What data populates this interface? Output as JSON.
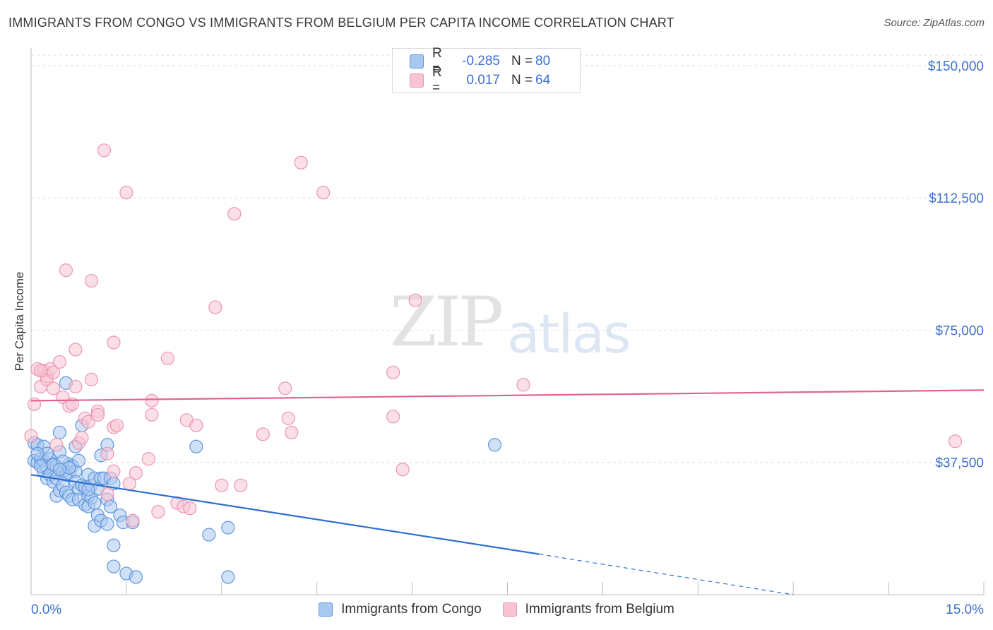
{
  "header": {
    "title": "IMMIGRANTS FROM CONGO VS IMMIGRANTS FROM BELGIUM PER CAPITA INCOME CORRELATION CHART",
    "source": "Source: ZipAtlas.com"
  },
  "watermark": {
    "zip": "ZIP",
    "atlas": "atlas"
  },
  "stats": {
    "congo": {
      "r_label": "R =",
      "r_value": "-0.285",
      "n_label": "N =",
      "n_value": "80"
    },
    "belgium": {
      "r_label": "R =",
      "r_value": "0.017",
      "n_label": "N =",
      "n_value": "64"
    }
  },
  "colors": {
    "congo_fill": "#a9c8f0",
    "congo_stroke": "#5f95dc",
    "congo_line": "#2c6fd1",
    "belgium_fill": "#f8c4d4",
    "belgium_stroke": "#eb95b0",
    "belgium_line": "#e2648e",
    "axis_text": "#3d6fd1",
    "grid": "#dcdcdc"
  },
  "chart_data": {
    "type": "scatter",
    "title": "IMMIGRANTS FROM CONGO VS IMMIGRANTS FROM BELGIUM PER CAPITA INCOME CORRELATION CHART",
    "xlabel": "",
    "ylabel": "Per Capita Income",
    "xlim": [
      0,
      15
    ],
    "ylim": [
      0,
      153000
    ],
    "x_tick_labels": [
      "0.0%",
      "15.0%"
    ],
    "y_ticks": [
      37500,
      75000,
      112500,
      150000
    ],
    "y_tick_labels": [
      "$37,500",
      "$75,000",
      "$112,500",
      "$150,000"
    ],
    "legend": [
      "Immigrants from Congo",
      "Immigrants from Belgium"
    ],
    "series": [
      {
        "name": "Immigrants from Congo",
        "trend": {
          "x0": 0,
          "y0": 34000,
          "x1": 8.0,
          "y1": 11500,
          "dash_to_x": 12.0,
          "dash_to_y": 0
        },
        "points": [
          [
            0.05,
            43000
          ],
          [
            0.05,
            38000
          ],
          [
            0.1,
            37500
          ],
          [
            0.1,
            42500
          ],
          [
            0.15,
            38500
          ],
          [
            0.2,
            42000
          ],
          [
            0.2,
            38000
          ],
          [
            0.2,
            35000
          ],
          [
            0.25,
            33000
          ],
          [
            0.25,
            36000
          ],
          [
            0.3,
            38500
          ],
          [
            0.3,
            34000
          ],
          [
            0.35,
            32000
          ],
          [
            0.35,
            37000
          ],
          [
            0.4,
            36500
          ],
          [
            0.4,
            33000
          ],
          [
            0.4,
            28000
          ],
          [
            0.45,
            40500
          ],
          [
            0.45,
            29500
          ],
          [
            0.45,
            46000
          ],
          [
            0.5,
            35000
          ],
          [
            0.5,
            31000
          ],
          [
            0.55,
            34000
          ],
          [
            0.55,
            29000
          ],
          [
            0.55,
            60000
          ],
          [
            0.6,
            37000
          ],
          [
            0.6,
            34500
          ],
          [
            0.6,
            28000
          ],
          [
            0.65,
            36500
          ],
          [
            0.65,
            27000
          ],
          [
            0.7,
            35000
          ],
          [
            0.7,
            32000
          ],
          [
            0.7,
            42000
          ],
          [
            0.75,
            38000
          ],
          [
            0.75,
            30000
          ],
          [
            0.75,
            27000
          ],
          [
            0.8,
            48000
          ],
          [
            0.8,
            31000
          ],
          [
            0.85,
            30500
          ],
          [
            0.85,
            25500
          ],
          [
            0.9,
            34000
          ],
          [
            0.9,
            28000
          ],
          [
            0.9,
            25000
          ],
          [
            0.95,
            31000
          ],
          [
            0.95,
            27500
          ],
          [
            1.0,
            33000
          ],
          [
            1.0,
            26000
          ],
          [
            1.0,
            19500
          ],
          [
            1.05,
            30000
          ],
          [
            1.05,
            22500
          ],
          [
            1.1,
            39500
          ],
          [
            1.1,
            33000
          ],
          [
            1.1,
            21000
          ],
          [
            1.15,
            33000
          ],
          [
            1.2,
            27000
          ],
          [
            1.2,
            20000
          ],
          [
            1.25,
            25000
          ],
          [
            1.3,
            14000
          ],
          [
            1.4,
            22500
          ],
          [
            1.45,
            20500
          ],
          [
            1.5,
            6000
          ],
          [
            1.6,
            20500
          ],
          [
            1.65,
            5000
          ],
          [
            2.6,
            42000
          ],
          [
            2.8,
            17000
          ],
          [
            3.1,
            19000
          ],
          [
            3.1,
            5000
          ],
          [
            7.3,
            42500
          ],
          [
            1.3,
            8000
          ],
          [
            0.15,
            36500
          ],
          [
            0.35,
            36800
          ],
          [
            0.5,
            37800
          ],
          [
            0.9,
            29800
          ],
          [
            1.2,
            42500
          ],
          [
            1.25,
            33000
          ],
          [
            1.3,
            31500
          ],
          [
            0.25,
            40000
          ],
          [
            0.6,
            36000
          ],
          [
            0.1,
            40000
          ],
          [
            0.45,
            35500
          ]
        ]
      },
      {
        "name": "Immigrants from Belgium",
        "trend": {
          "x0": 0,
          "y0": 55000,
          "x1": 15.0,
          "y1": 58000
        },
        "points": [
          [
            0.0,
            45000
          ],
          [
            0.05,
            54000
          ],
          [
            0.1,
            64000
          ],
          [
            0.15,
            59000
          ],
          [
            0.2,
            63500
          ],
          [
            0.25,
            62000
          ],
          [
            0.25,
            61000
          ],
          [
            0.3,
            64000
          ],
          [
            0.35,
            58500
          ],
          [
            0.35,
            63000
          ],
          [
            0.4,
            42500
          ],
          [
            0.45,
            66000
          ],
          [
            0.5,
            56000
          ],
          [
            0.55,
            92000
          ],
          [
            0.6,
            53500
          ],
          [
            0.65,
            54000
          ],
          [
            0.7,
            69500
          ],
          [
            0.7,
            59000
          ],
          [
            0.75,
            43000
          ],
          [
            0.8,
            44500
          ],
          [
            0.85,
            50000
          ],
          [
            0.9,
            49000
          ],
          [
            0.95,
            61000
          ],
          [
            0.95,
            89000
          ],
          [
            1.05,
            52000
          ],
          [
            1.05,
            51000
          ],
          [
            1.15,
            126000
          ],
          [
            1.2,
            40000
          ],
          [
            1.2,
            28500
          ],
          [
            1.3,
            71500
          ],
          [
            1.3,
            47500
          ],
          [
            1.3,
            35000
          ],
          [
            1.35,
            48000
          ],
          [
            1.5,
            114000
          ],
          [
            1.55,
            31500
          ],
          [
            1.6,
            21000
          ],
          [
            1.65,
            34500
          ],
          [
            1.85,
            38500
          ],
          [
            1.9,
            51000
          ],
          [
            1.9,
            55000
          ],
          [
            2.0,
            23500
          ],
          [
            2.15,
            67000
          ],
          [
            2.3,
            26000
          ],
          [
            2.4,
            25000
          ],
          [
            2.45,
            49500
          ],
          [
            2.5,
            24500
          ],
          [
            2.6,
            48000
          ],
          [
            2.9,
            81500
          ],
          [
            3.0,
            31000
          ],
          [
            3.2,
            108000
          ],
          [
            3.3,
            31000
          ],
          [
            3.65,
            45500
          ],
          [
            4.0,
            58500
          ],
          [
            4.05,
            50000
          ],
          [
            4.1,
            46000
          ],
          [
            4.25,
            122500
          ],
          [
            4.6,
            114000
          ],
          [
            5.7,
            63000
          ],
          [
            5.7,
            50500
          ],
          [
            5.85,
            35500
          ],
          [
            6.05,
            83500
          ],
          [
            7.75,
            59500
          ],
          [
            14.55,
            43500
          ],
          [
            0.15,
            63500
          ]
        ]
      }
    ]
  }
}
